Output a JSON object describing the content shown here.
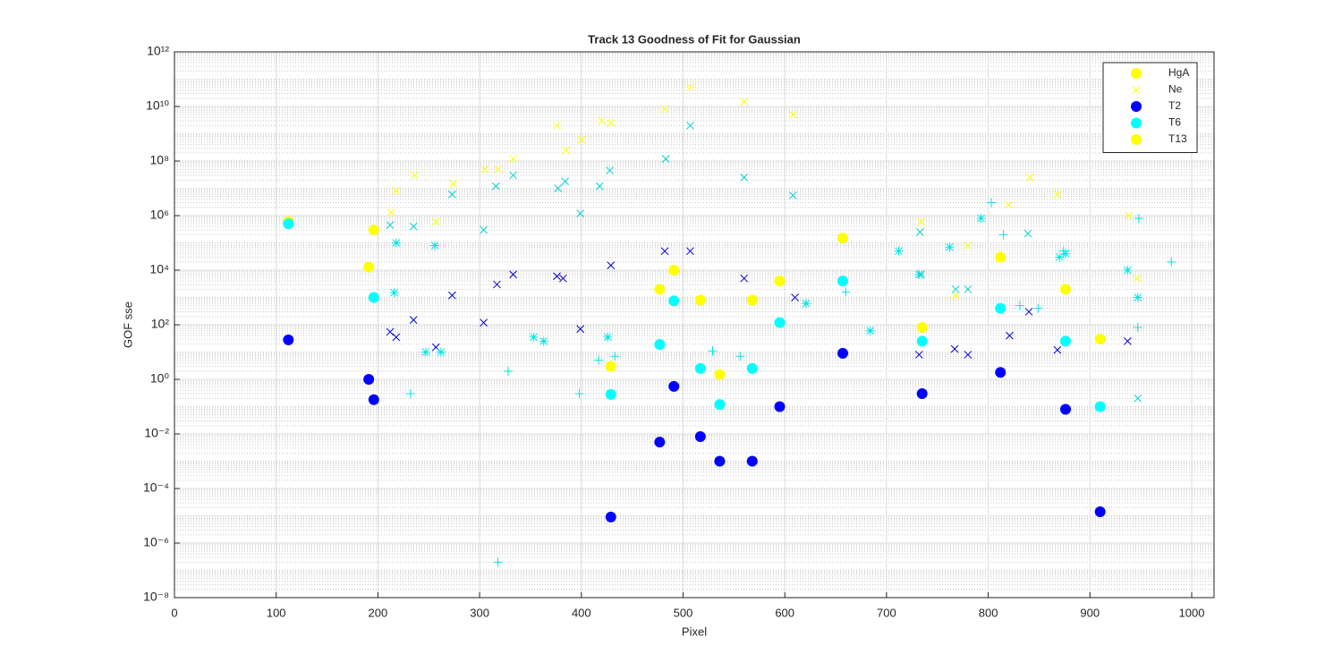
{
  "chart_data": {
    "type": "scatter",
    "title": "Track 13  Goodness of Fit for Gaussian",
    "x_label": "Pixel",
    "y_label": "GOF sse",
    "xlim": [
      0,
      1022
    ],
    "xticks": [
      0,
      100,
      200,
      300,
      400,
      500,
      600,
      700,
      800,
      900,
      1000
    ],
    "ylim": [
      1e-08,
      1000000000000.0
    ],
    "log_y": true,
    "grid": true,
    "minor_grid": true,
    "legend": "northeast",
    "yticks": [
      {
        "value": 1e-08,
        "label": "10⁻⁸"
      },
      {
        "value": 1e-06,
        "label": "10⁻⁶"
      },
      {
        "value": 0.0001,
        "label": "10⁻⁴"
      },
      {
        "value": 0.01,
        "label": "10⁻²"
      },
      {
        "value": 1,
        "label": "10⁰"
      },
      {
        "value": 100,
        "label": "10²"
      },
      {
        "value": 10000,
        "label": "10⁴"
      },
      {
        "value": 1000000,
        "label": "10⁶"
      },
      {
        "value": 100000000,
        "label": "10⁸"
      },
      {
        "value": 10000000000,
        "label": "10¹⁰"
      },
      {
        "value": 1000000000000,
        "label": "10¹²"
      }
    ],
    "series": [
      {
        "name": "HgA",
        "color": "#ffff00",
        "marker": "circle",
        "x": [
          112,
          196,
          191
        ],
        "values": [
          600000,
          300000,
          13000
        ]
      },
      {
        "name": "Ne",
        "color": "#ffff00",
        "marker": "x",
        "x": [
          507,
          560,
          482,
          608,
          420,
          429,
          376,
          400,
          385,
          333,
          305,
          318,
          236,
          274,
          841,
          218,
          868,
          820,
          213,
          734,
          257,
          938,
          780,
          768,
          947
        ],
        "values": [
          50000000000,
          15000000000,
          8000000000,
          5000000000,
          3000000000,
          2500000000,
          2000000000,
          600000000,
          250000000,
          120000000,
          50000000,
          50000000,
          30000000,
          15000000,
          25000000,
          8000000,
          6000000,
          2500000,
          1300000,
          600000,
          600000,
          1000000,
          80000,
          1200,
          5000
        ]
      },
      {
        "name": "T2",
        "color": "#0000ff",
        "marker": "circle",
        "x": [
          112,
          191,
          196,
          491,
          477,
          517,
          536,
          568,
          595,
          429,
          657,
          735,
          812,
          876,
          910
        ],
        "values": [
          28,
          1,
          0.18,
          0.55,
          0.005,
          0.008,
          0.001,
          0.001,
          0.1,
          9e-06,
          9,
          0.3,
          1.8,
          0.08,
          1.4e-05
        ]
      },
      {
        "name": "T6",
        "color": "#00ffff",
        "marker": "circle",
        "x": [
          112,
          196,
          477,
          491,
          517,
          568,
          429,
          536,
          595,
          657,
          735,
          812,
          876,
          910
        ],
        "values": [
          500000,
          1000,
          19,
          750,
          2.5,
          2.5,
          0.28,
          0.12,
          120,
          4000,
          25,
          400,
          25,
          0.1
        ]
      },
      {
        "name": "T13",
        "color": "#ffff00",
        "marker": "circle",
        "x": [
          491,
          477,
          517,
          568,
          595,
          657,
          812,
          876,
          735,
          910,
          429,
          536
        ],
        "values": [
          10000,
          2000,
          800,
          800,
          4000,
          150000,
          30000,
          2000,
          80,
          30,
          3,
          1.5
        ]
      },
      {
        "color": "#0000cd",
        "marker": "x",
        "x": [
          610,
          482,
          507,
          560,
          429,
          382,
          376,
          333,
          317,
          273,
          235,
          212,
          218,
          257,
          304,
          399,
          767,
          780,
          732,
          821,
          840,
          868,
          937
        ],
        "values": [
          1000,
          50000,
          50000,
          5000,
          15000,
          5000,
          6000,
          7000,
          3000,
          1200,
          150,
          55,
          35,
          15,
          120,
          70,
          13,
          8,
          8,
          40,
          300,
          12,
          25
        ]
      },
      {
        "color": "#00e5e5",
        "marker": "plus",
        "x": [
          318,
          232,
          328,
          398,
          417,
          433,
          529,
          556,
          660,
          803,
          815,
          831,
          849,
          874,
          948,
          980,
          947
        ],
        "values": [
          2e-07,
          0.3,
          2,
          0.3,
          5,
          7,
          11,
          7,
          1600,
          3000000,
          200000,
          500,
          400,
          50000,
          800000,
          20000,
          80
        ]
      },
      {
        "color": "#00e5e5",
        "marker": "star",
        "x": [
          247,
          262,
          353,
          363,
          426,
          684,
          712,
          762,
          793,
          870,
          937,
          876,
          947,
          621,
          732,
          216,
          218,
          256
        ],
        "values": [
          10,
          10,
          35,
          25,
          35,
          60,
          50000,
          70000,
          800000,
          30000,
          10000,
          40000,
          1000,
          600,
          7000,
          1500,
          100000,
          80000
        ]
      },
      {
        "color": "#00d0d0",
        "marker": "x",
        "x": [
          507,
          483,
          428,
          384,
          377,
          418,
          316,
          333,
          273,
          235,
          212,
          304,
          399,
          560,
          608,
          734,
          768,
          780,
          839,
          733,
          947
        ],
        "values": [
          2000000000,
          120000000,
          45000000,
          18000000,
          10000000,
          12000000,
          12000000,
          30000000,
          6000000,
          400000,
          450000,
          300000,
          1200000,
          25000000,
          5500000,
          7000,
          2000,
          2000,
          220000,
          250000,
          0.2
        ]
      }
    ]
  }
}
